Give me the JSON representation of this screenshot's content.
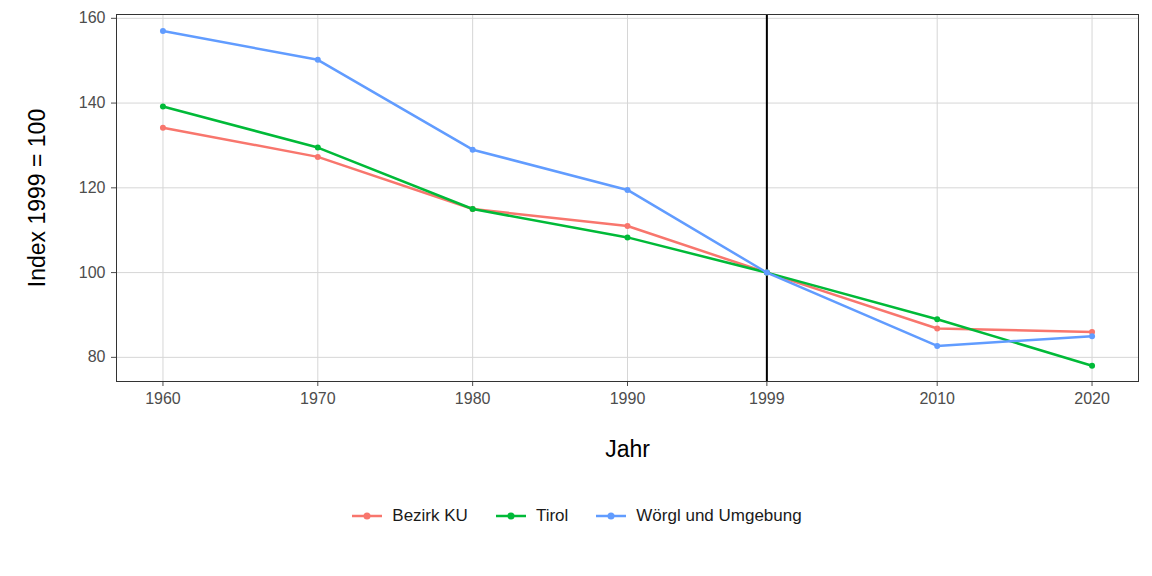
{
  "chart_data": {
    "type": "line",
    "x_label": "Jahr",
    "y_label": "Index 1999 = 100",
    "x": [
      1960,
      1970,
      1980,
      1990,
      1999,
      2010,
      2020
    ],
    "series": [
      {
        "name": "Bezirk KU",
        "color": "#F8766D",
        "values": [
          134.2,
          127.3,
          115,
          111,
          100,
          86.8,
          86
        ]
      },
      {
        "name": "Tirol",
        "color": "#00BA38",
        "values": [
          139.2,
          129.5,
          115,
          108.3,
          100,
          89,
          78
        ]
      },
      {
        "name": "Wörgl und Umgebung",
        "color": "#619CFF",
        "values": [
          157,
          150.2,
          129,
          119.5,
          100,
          82.7,
          85
        ]
      }
    ],
    "xlim": [
      1957,
      2023
    ],
    "xticks": [
      1960,
      1970,
      1980,
      1990,
      1999,
      2010,
      2020
    ],
    "ylim": [
      74.3,
      160.9
    ],
    "yticks": [
      80,
      100,
      120,
      140,
      160
    ],
    "vline": 1999,
    "grid": true,
    "marker": "circle",
    "legend": "bottom"
  }
}
